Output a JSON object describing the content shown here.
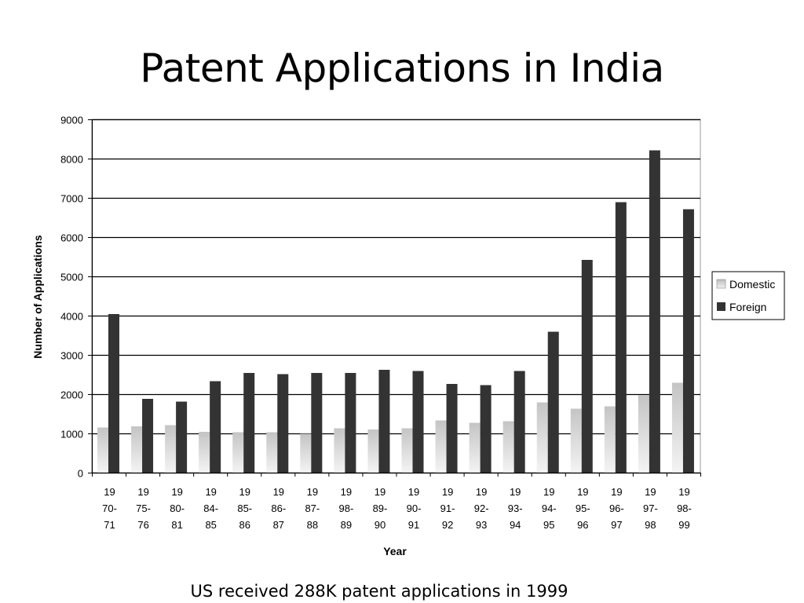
{
  "slide": {
    "title": "Patent Applications in India",
    "footer": "US received 288K patent applications in 1999"
  },
  "chart_data": {
    "type": "bar",
    "xlabel": "Year",
    "ylabel": "Number of Applications",
    "ylim": [
      0,
      9000
    ],
    "yticks": [
      0,
      1000,
      2000,
      3000,
      4000,
      5000,
      6000,
      7000,
      8000,
      9000
    ],
    "grid": true,
    "legend_position": "right",
    "categories": [
      [
        "19",
        "70-",
        "71"
      ],
      [
        "19",
        "75-",
        "76"
      ],
      [
        "19",
        "80-",
        "81"
      ],
      [
        "19",
        "84-",
        "85"
      ],
      [
        "19",
        "85-",
        "86"
      ],
      [
        "19",
        "86-",
        "87"
      ],
      [
        "19",
        "87-",
        "88"
      ],
      [
        "19",
        "98-",
        "89"
      ],
      [
        "19",
        "89-",
        "90"
      ],
      [
        "19",
        "90-",
        "91"
      ],
      [
        "19",
        "91-",
        "92"
      ],
      [
        "19",
        "92-",
        "93"
      ],
      [
        "19",
        "93-",
        "94"
      ],
      [
        "19",
        "94-",
        "95"
      ],
      [
        "19",
        "95-",
        "96"
      ],
      [
        "19",
        "96-",
        "97"
      ],
      [
        "19",
        "97-",
        "98"
      ],
      [
        "19",
        "98-",
        "99"
      ]
    ],
    "series": [
      {
        "name": "Domestic",
        "color": "#cccccc",
        "values": [
          1150,
          1180,
          1210,
          1040,
          1030,
          1030,
          990,
          1130,
          1100,
          1130,
          1330,
          1270,
          1310,
          1790,
          1630,
          1690,
          1970,
          2290
        ]
      },
      {
        "name": "Foreign",
        "color": "#333333",
        "values": [
          4040,
          1880,
          1810,
          2330,
          2540,
          2510,
          2540,
          2540,
          2620,
          2590,
          2260,
          2230,
          2590,
          3590,
          5420,
          6890,
          8210,
          6710
        ]
      }
    ]
  }
}
